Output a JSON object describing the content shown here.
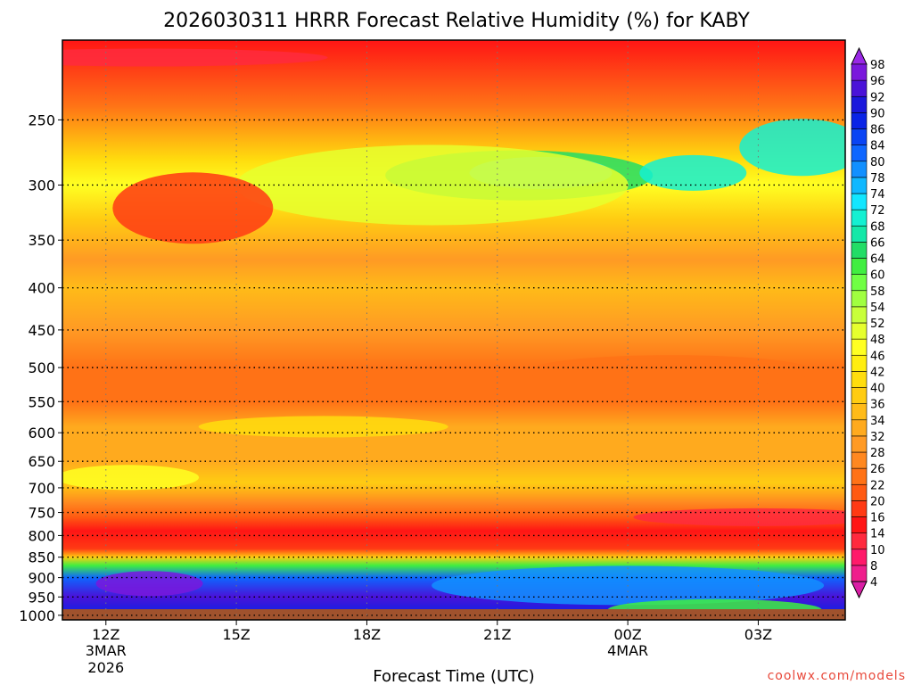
{
  "chart_data": {
    "type": "heatmap",
    "title": "2026030311 HRRR Forecast Relative Humidity (%) for KABY",
    "xlabel": "Forecast Time (UTC)",
    "ylabel": "",
    "x_ticks": [
      {
        "hour": 0,
        "label": "12Z",
        "sub1": "3MAR",
        "sub2": "2026"
      },
      {
        "hour": 3,
        "label": "15Z",
        "sub1": "",
        "sub2": ""
      },
      {
        "hour": 6,
        "label": "18Z",
        "sub1": "",
        "sub2": ""
      },
      {
        "hour": 9,
        "label": "21Z",
        "sub1": "",
        "sub2": ""
      },
      {
        "hour": 12,
        "label": "00Z",
        "sub1": "4MAR",
        "sub2": ""
      },
      {
        "hour": 15,
        "label": "03Z",
        "sub1": "",
        "sub2": ""
      }
    ],
    "x_range_hours": [
      -1,
      17
    ],
    "y_ticks": [
      250,
      300,
      350,
      400,
      450,
      500,
      550,
      600,
      650,
      700,
      750,
      800,
      850,
      900,
      950,
      1000
    ],
    "y_range_hpa": [
      200,
      1013
    ],
    "y_scale": "log",
    "grid": true,
    "colorbar_levels": [
      4,
      8,
      10,
      14,
      16,
      20,
      22,
      26,
      28,
      32,
      34,
      36,
      40,
      42,
      46,
      48,
      52,
      54,
      58,
      60,
      64,
      66,
      68,
      72,
      74,
      78,
      80,
      84,
      86,
      90,
      92,
      96,
      98
    ],
    "colorbar_colors": [
      "#d91ea5",
      "#ef1f8c",
      "#ff1a6a",
      "#ff2a3e",
      "#ff1515",
      "#ff3a14",
      "#ff5a12",
      "#ff7216",
      "#ff8820",
      "#ff9a24",
      "#ffaa1e",
      "#ffbb18",
      "#ffcc12",
      "#ffdd0e",
      "#ffee10",
      "#ffff22",
      "#e6ff2e",
      "#c8ff3a",
      "#a0ff40",
      "#70ff44",
      "#40ee40",
      "#22dd66",
      "#14e8a8",
      "#14f0d2",
      "#12e6ff",
      "#10b8ff",
      "#1290ff",
      "#0e66ff",
      "#0a44f4",
      "#0a24e6",
      "#1a18dc",
      "#4a12d8",
      "#7a18dc",
      "#9a28e6"
    ],
    "rh_profile": [
      {
        "hpa": 200,
        "rh": 15
      },
      {
        "hpa": 240,
        "rh": 24
      },
      {
        "hpa": 280,
        "rh": 40
      },
      {
        "hpa": 300,
        "rh": 46
      },
      {
        "hpa": 330,
        "rh": 36
      },
      {
        "hpa": 370,
        "rh": 30
      },
      {
        "hpa": 400,
        "rh": 34
      },
      {
        "hpa": 450,
        "rh": 28
      },
      {
        "hpa": 500,
        "rh": 22
      },
      {
        "hpa": 550,
        "rh": 24
      },
      {
        "hpa": 590,
        "rh": 33
      },
      {
        "hpa": 650,
        "rh": 32
      },
      {
        "hpa": 690,
        "rh": 36
      },
      {
        "hpa": 730,
        "rh": 26
      },
      {
        "hpa": 760,
        "rh": 20
      },
      {
        "hpa": 790,
        "rh": 14
      },
      {
        "hpa": 830,
        "rh": 18
      },
      {
        "hpa": 850,
        "rh": 36
      },
      {
        "hpa": 870,
        "rh": 62
      },
      {
        "hpa": 900,
        "rh": 82
      },
      {
        "hpa": 950,
        "rh": 92
      },
      {
        "hpa": 1000,
        "rh": 88
      },
      {
        "hpa": 1013,
        "rh": 84
      }
    ],
    "ground_color": "#a0522d"
  },
  "credit": "coolwx.com/models"
}
